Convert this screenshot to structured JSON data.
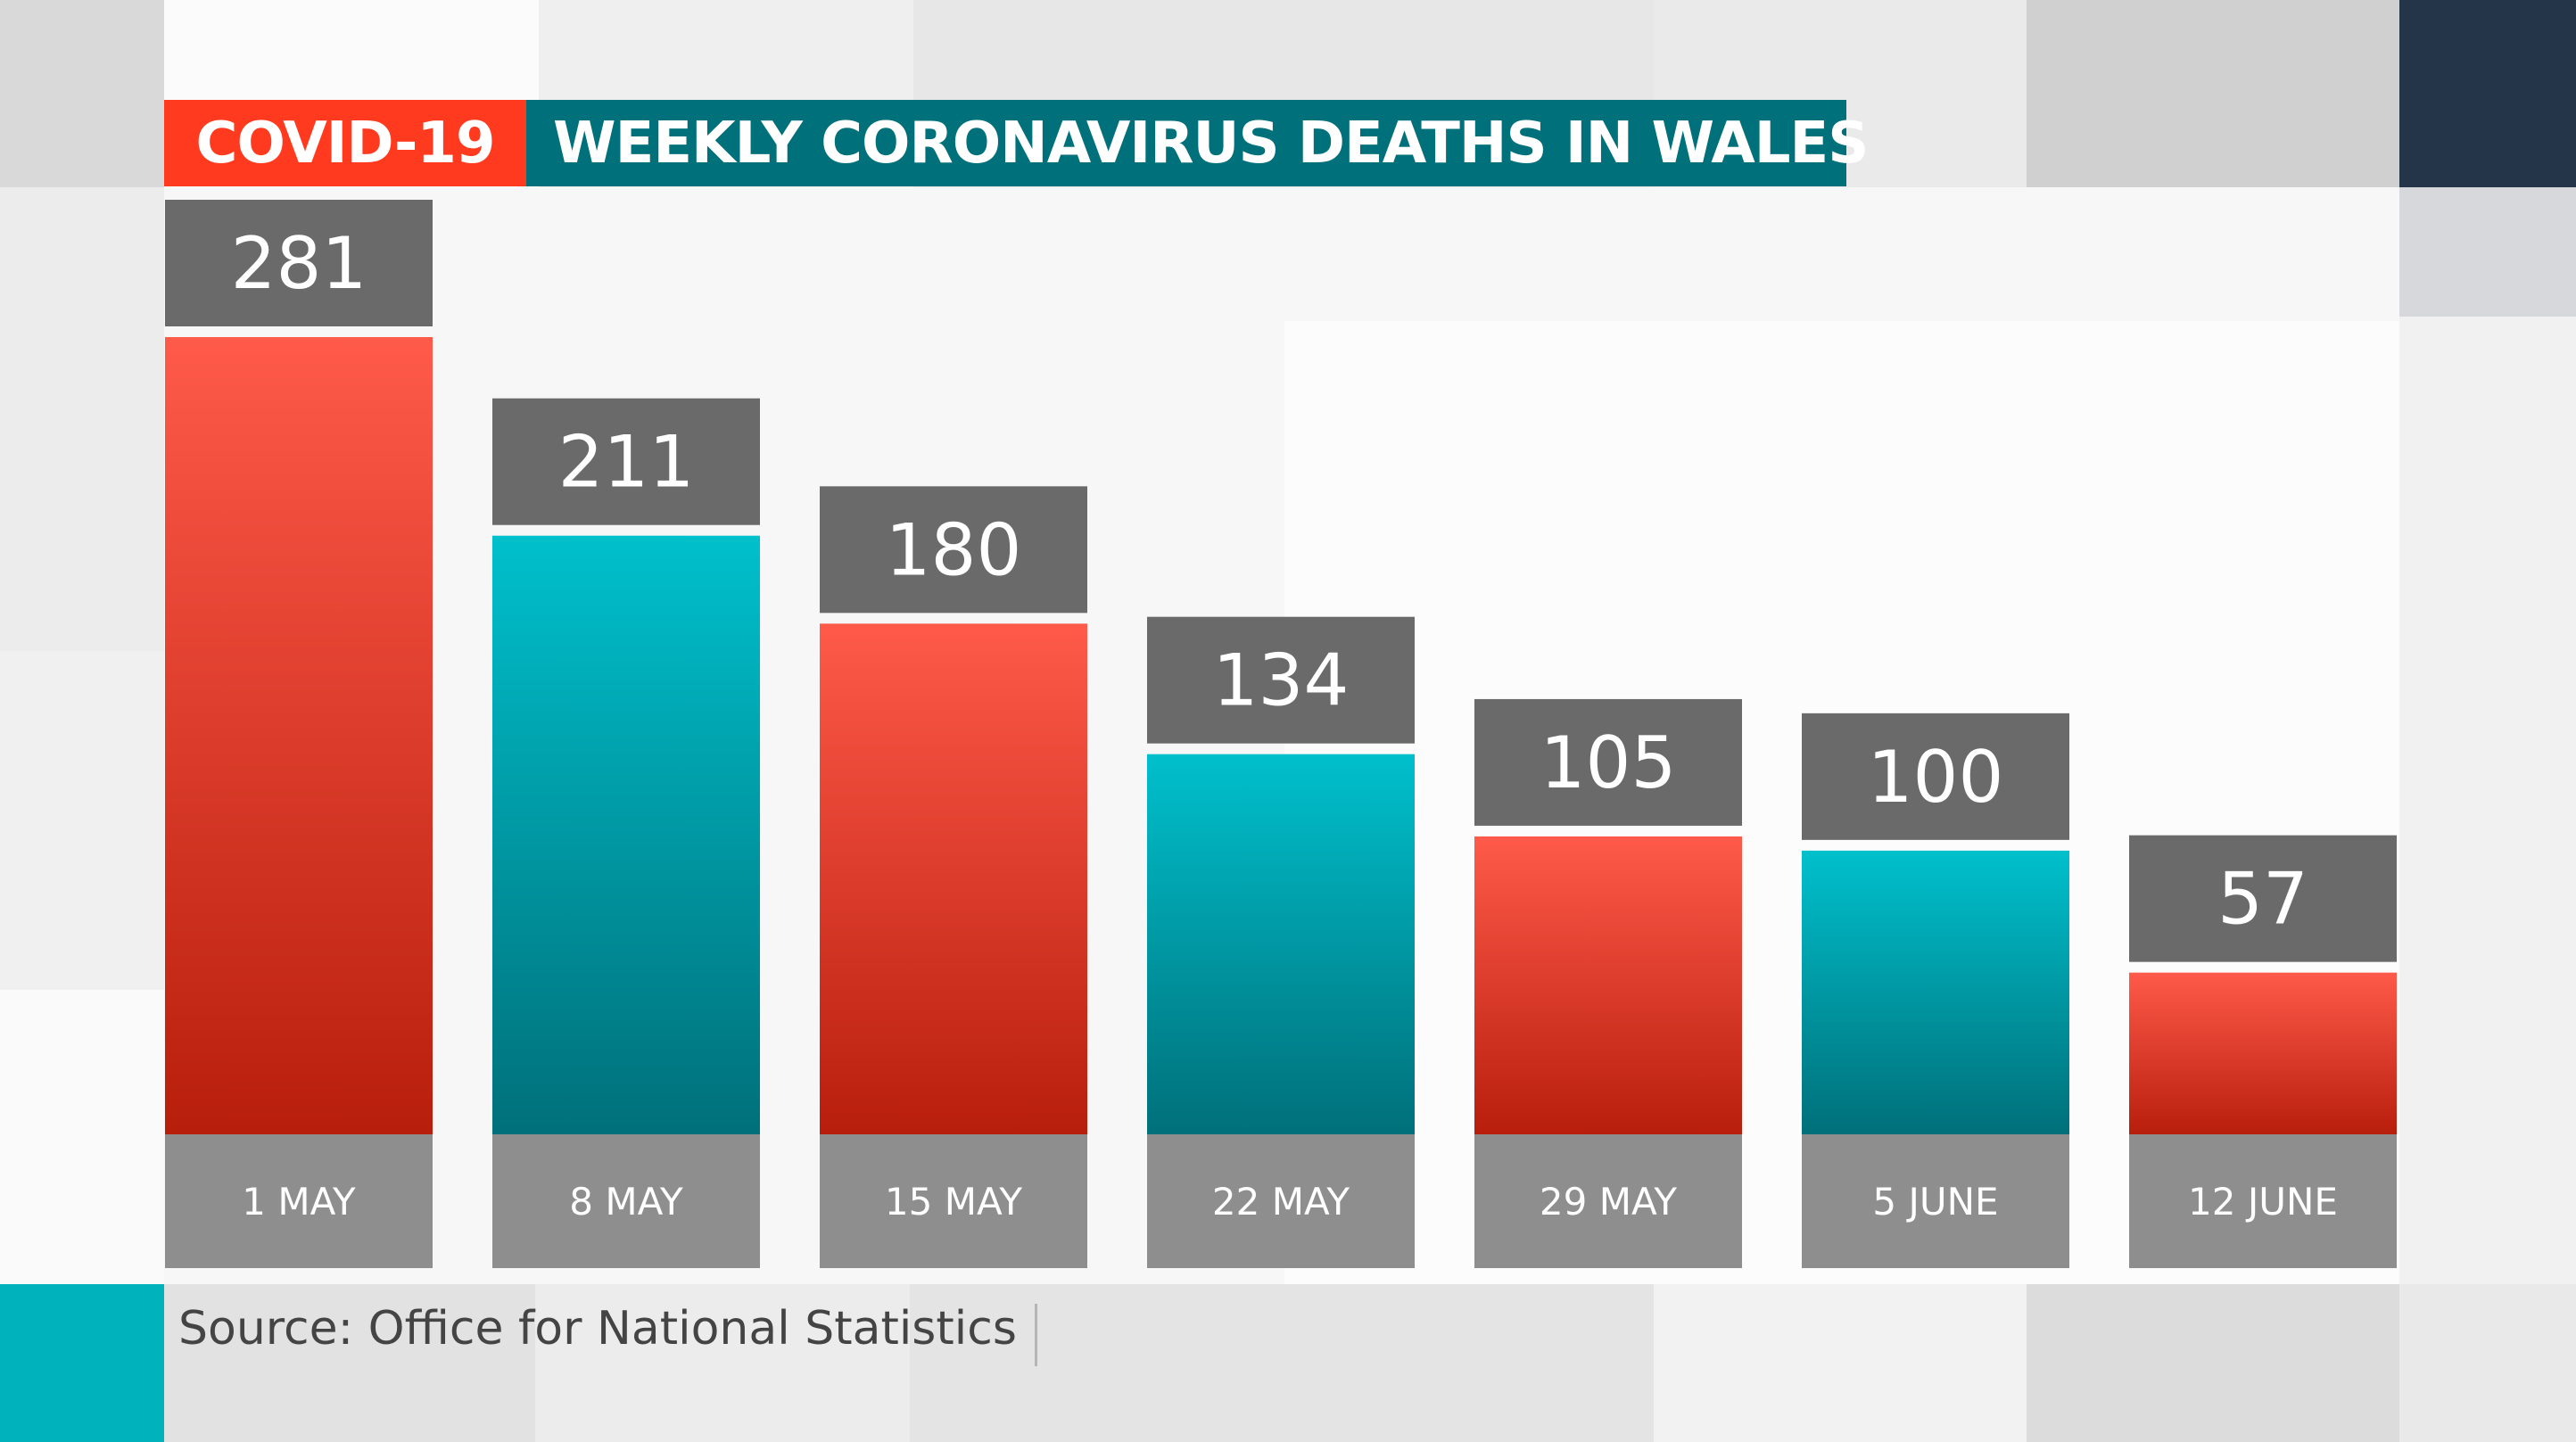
{
  "header": {
    "tag": "COVID-19",
    "title": "WEEKLY CORONAVIRUS DEATHS IN WALES"
  },
  "chart_data": {
    "type": "bar",
    "title": "WEEKLY CORONAVIRUS DEATHS IN WALES",
    "categories": [
      "1 MAY",
      "8 MAY",
      "15 MAY",
      "22 MAY",
      "29 MAY",
      "5 JUNE",
      "12 JUNE"
    ],
    "values": [
      281,
      211,
      180,
      134,
      105,
      100,
      57
    ],
    "value_labels": [
      "281",
      "211",
      "180",
      "134",
      "105",
      "100",
      "57"
    ],
    "xlabel": "",
    "ylabel": "",
    "ylim": [
      0,
      281
    ],
    "grid": false,
    "bar_colors": [
      "red",
      "teal",
      "red",
      "teal",
      "red",
      "teal",
      "red"
    ]
  },
  "colors": {
    "red_top": "#ff5a4a",
    "red_bottom": "#b81e0c",
    "teal_top": "#00c0cc",
    "teal_bottom": "#00707a",
    "label_box": "#6a6a6a",
    "category_box": "#8e8e8e",
    "accent_red": "#ff3a1f",
    "accent_teal": "#00707a",
    "corner_navy": "#243549",
    "source_teal": "#00b2bc"
  },
  "footer": {
    "source": "Source: Office for National Statistics"
  }
}
